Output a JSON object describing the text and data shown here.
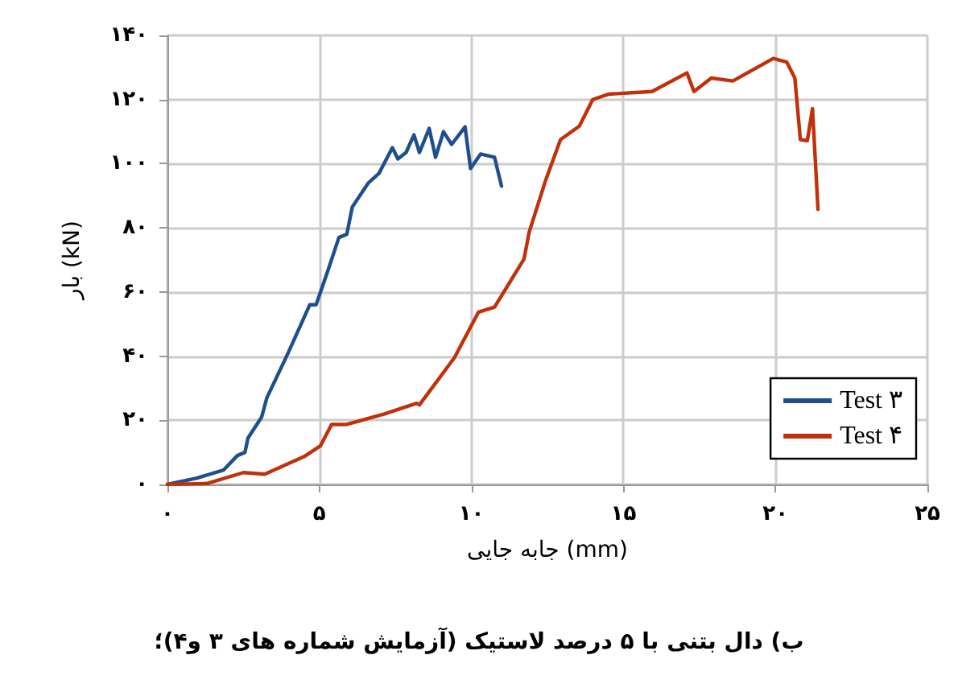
{
  "chart_data": {
    "type": "line",
    "xlabel": "جابه جایی (mm)",
    "ylabel": "بار (kN)",
    "annotations": [
      "ب) دال بتنی با ۵ درصد لاستیک (آزمایش شماره های ۳ و۴)؛"
    ],
    "xlim": [
      0,
      25
    ],
    "xticks": [
      {
        "value": 0,
        "label": "۰"
      },
      {
        "value": 5,
        "label": "۵"
      },
      {
        "value": 10,
        "label": "۱۰"
      },
      {
        "value": 15,
        "label": "۱۵"
      },
      {
        "value": 20,
        "label": "۲۰"
      },
      {
        "value": 25,
        "label": "۲۵"
      }
    ],
    "ylim": [
      0,
      140
    ],
    "yticks": [
      {
        "value": 0,
        "label": "۰"
      },
      {
        "value": 20,
        "label": "۲۰"
      },
      {
        "value": 40,
        "label": "۴۰"
      },
      {
        "value": 60,
        "label": "۶۰"
      },
      {
        "value": 80,
        "label": "۸۰"
      },
      {
        "value": 100,
        "label": "۱۰۰"
      },
      {
        "value": 120,
        "label": "۱۲۰"
      },
      {
        "value": 140,
        "label": "۱۴۰"
      }
    ],
    "grid": true,
    "legend": "bottom right",
    "marker": "none",
    "line_style": "solid",
    "series": [
      {
        "name": "Test ۳",
        "color": "#1f4e8c",
        "x": [
          0,
          0.97,
          1.85,
          2.3,
          2.55,
          2.65,
          3.1,
          3.27,
          3.97,
          4.68,
          4.89,
          5.29,
          5.64,
          5.9,
          6.08,
          6.61,
          6.96,
          7.4,
          7.58,
          7.85,
          8.11,
          8.29,
          8.61,
          8.82,
          9.08,
          9.35,
          9.79,
          9.97,
          10.3,
          10.76,
          10.99
        ],
        "values": [
          0,
          2,
          4.5,
          9,
          10,
          14.5,
          21,
          27,
          41,
          56,
          56,
          67,
          77,
          78,
          86.5,
          94,
          97,
          105,
          101.5,
          103.5,
          109,
          103.5,
          111,
          102,
          110,
          106,
          111.5,
          98.5,
          103,
          102,
          93
        ]
      },
      {
        "name": "Test ۴",
        "color": "#c0300a",
        "x": [
          0,
          1.3,
          2.5,
          3.2,
          4.5,
          5.03,
          5.4,
          5.9,
          7.14,
          8.2,
          8.29,
          9.44,
          10.23,
          10.76,
          11.73,
          11.9,
          12.43,
          12.93,
          13.55,
          13.99,
          14.52,
          15.94,
          17.09,
          17.32,
          17.89,
          18.6,
          19.93,
          20.37,
          20.64,
          20.82,
          21.05,
          21.22,
          21.4
        ],
        "values": [
          0,
          0.3,
          3.7,
          3.2,
          8.7,
          12,
          18.7,
          18.7,
          22,
          25.3,
          24.8,
          39.5,
          53.7,
          55.3,
          70.3,
          78.7,
          94.5,
          107.5,
          111.7,
          120,
          121.7,
          122.5,
          128.3,
          122.5,
          126.7,
          125.8,
          132.8,
          131.7,
          126.7,
          107.5,
          107.2,
          117.2,
          85.8
        ]
      }
    ]
  }
}
